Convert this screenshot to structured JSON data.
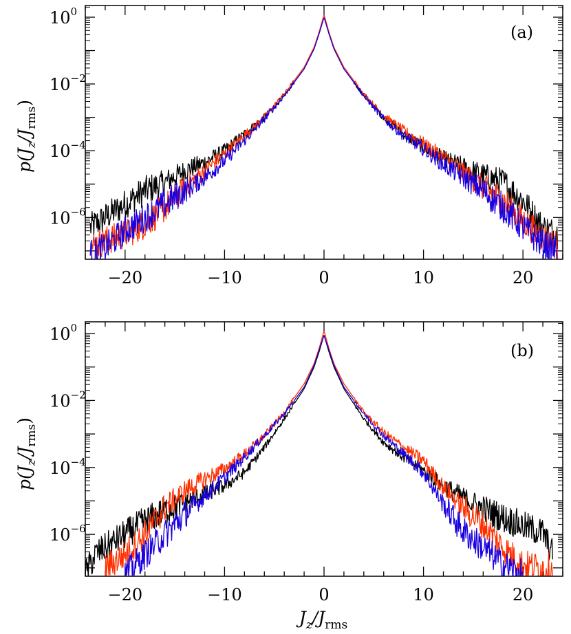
{
  "figure": {
    "x_axis_label": {
      "main": "J",
      "sub1": "z",
      "slash": "/J",
      "sub2": "rms"
    },
    "y_axis_label": {
      "p": "p(J",
      "sub1": "z",
      "slash": "/J",
      "sub2": "rms",
      "close": ")"
    }
  },
  "chart_data": [
    {
      "type": "line",
      "panel_label": "(a)",
      "x_axis": {
        "range": [
          -24,
          24
        ],
        "ticks": [
          -20,
          -10,
          0,
          10,
          20
        ],
        "tick_labels": [
          "−20",
          "−10",
          "0",
          "10",
          "20"
        ]
      },
      "y_axis": {
        "scale": "log",
        "range_exponent": [
          -7.25,
          0.35
        ],
        "ticks_exponent": [
          0,
          -2,
          -4,
          -6
        ],
        "tick_base": "10",
        "tick_exponent_labels": [
          "0",
          "−2",
          "−4",
          "−6"
        ]
      },
      "grid": false,
      "legend": "none",
      "series": [
        {
          "color": "#000000",
          "x": [
            -23.5,
            -22,
            -20,
            -18,
            -16,
            -14,
            -12,
            -10,
            -8,
            -6,
            -4,
            -2,
            -1,
            -0.5,
            0,
            0.5,
            1,
            2,
            4,
            6,
            8,
            10,
            12,
            14,
            16,
            18,
            20,
            22,
            23.5
          ],
          "log10_y": [
            -6.3,
            -6.0,
            -5.6,
            -5.2,
            -4.95,
            -4.6,
            -4.35,
            -4.0,
            -3.5,
            -3.0,
            -2.35,
            -1.55,
            -0.95,
            -0.5,
            0.0,
            -0.5,
            -0.95,
            -1.55,
            -2.35,
            -3.0,
            -3.5,
            -3.9,
            -4.25,
            -4.5,
            -4.75,
            -4.95,
            -5.5,
            -6.3,
            -6.5
          ]
        },
        {
          "color": "#ff3000",
          "x": [
            -23.5,
            -22,
            -20,
            -18,
            -16,
            -14,
            -12,
            -10,
            -8,
            -6,
            -4,
            -2,
            -1,
            -0.5,
            0,
            0.5,
            1,
            2,
            4,
            6,
            8,
            10,
            12,
            14,
            16,
            18,
            20,
            22,
            23.5
          ],
          "log10_y": [
            -6.9,
            -6.7,
            -6.5,
            -6.2,
            -5.7,
            -5.1,
            -4.6,
            -4.1,
            -3.55,
            -3.0,
            -2.3,
            -1.5,
            -0.9,
            -0.45,
            0.08,
            -0.45,
            -0.9,
            -1.5,
            -2.3,
            -2.95,
            -3.4,
            -3.8,
            -4.2,
            -4.65,
            -5.1,
            -5.5,
            -6.1,
            -6.6,
            -6.8
          ]
        },
        {
          "color": "#1a00e0",
          "x": [
            -23.5,
            -22,
            -20,
            -18,
            -16,
            -14,
            -12,
            -10,
            -8,
            -6,
            -4,
            -2,
            -1,
            -0.5,
            0,
            0.5,
            1,
            2,
            4,
            6,
            8,
            10,
            12,
            14,
            16,
            18,
            20,
            22,
            23.5
          ],
          "log10_y": [
            -7.1,
            -6.9,
            -6.4,
            -6.0,
            -5.6,
            -5.2,
            -4.8,
            -4.3,
            -3.7,
            -3.05,
            -2.35,
            -1.55,
            -0.95,
            -0.5,
            0.0,
            -0.5,
            -0.95,
            -1.55,
            -2.35,
            -3.05,
            -3.55,
            -3.95,
            -4.4,
            -4.8,
            -5.2,
            -5.7,
            -6.3,
            -6.8,
            -7.0
          ]
        }
      ]
    },
    {
      "type": "line",
      "panel_label": "(b)",
      "x_axis": {
        "range": [
          -24,
          24
        ],
        "ticks": [
          -20,
          -10,
          0,
          10,
          20
        ],
        "tick_labels": [
          "−20",
          "−10",
          "0",
          "10",
          "20"
        ]
      },
      "y_axis": {
        "scale": "log",
        "range_exponent": [
          -7.25,
          0.35
        ],
        "ticks_exponent": [
          0,
          -2,
          -4,
          -6
        ],
        "tick_base": "10",
        "tick_exponent_labels": [
          "0",
          "−2",
          "−4",
          "−6"
        ]
      },
      "grid": false,
      "legend": "none",
      "series": [
        {
          "color": "#000000",
          "x": [
            -24,
            -23,
            -22,
            -20,
            -18,
            -16,
            -14,
            -12,
            -10,
            -8,
            -6,
            -4,
            -2,
            -1,
            -0.5,
            0,
            0.5,
            1,
            2,
            4,
            6,
            8,
            10,
            12,
            14,
            16,
            18,
            20,
            22,
            23
          ],
          "log10_y": [
            -7.2,
            -6.6,
            -6.4,
            -6.0,
            -5.6,
            -5.3,
            -5.05,
            -4.8,
            -4.55,
            -4.15,
            -3.4,
            -2.55,
            -1.65,
            -1.0,
            -0.55,
            -0.05,
            -0.55,
            -1.0,
            -1.65,
            -2.55,
            -3.25,
            -3.7,
            -4.1,
            -4.55,
            -4.9,
            -5.25,
            -5.5,
            -5.75,
            -5.95,
            -6.6
          ]
        },
        {
          "color": "#ff3000",
          "x": [
            -22,
            -20,
            -18,
            -16,
            -14,
            -12,
            -10,
            -8,
            -6,
            -4,
            -2,
            -1,
            -0.5,
            0,
            0.5,
            1,
            2,
            4,
            6,
            8,
            10,
            12,
            14,
            16,
            18,
            20,
            22,
            23
          ],
          "log10_y": [
            -7.0,
            -6.6,
            -6.0,
            -5.2,
            -4.7,
            -4.35,
            -4.05,
            -3.6,
            -3.05,
            -2.35,
            -1.5,
            -0.9,
            -0.45,
            0.08,
            -0.45,
            -0.9,
            -1.5,
            -2.35,
            -2.95,
            -3.4,
            -3.8,
            -4.6,
            -5.2,
            -5.7,
            -6.4,
            -6.9,
            -7.0,
            -7.0
          ]
        },
        {
          "color": "#1a00e0",
          "x": [
            -20,
            -18,
            -16,
            -14,
            -12,
            -10,
            -8,
            -6,
            -4,
            -2,
            -1,
            -0.5,
            0,
            0.5,
            1,
            2,
            4,
            6,
            8,
            10,
            12,
            14,
            16,
            18,
            20
          ],
          "log10_y": [
            -7.2,
            -6.6,
            -6.0,
            -5.4,
            -4.85,
            -4.3,
            -3.7,
            -3.05,
            -2.4,
            -1.6,
            -0.95,
            -0.5,
            -0.05,
            -0.5,
            -0.95,
            -1.6,
            -2.4,
            -3.05,
            -3.6,
            -4.15,
            -5.1,
            -5.9,
            -6.4,
            -6.9,
            -7.2
          ]
        }
      ]
    }
  ]
}
